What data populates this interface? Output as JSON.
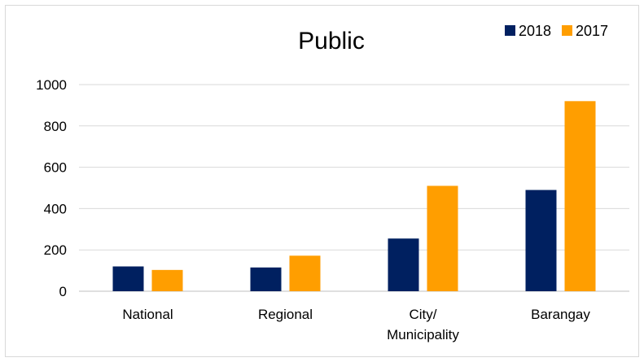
{
  "chart_data": {
    "type": "bar",
    "title": "Public",
    "categories": [
      [
        "National"
      ],
      [
        "Regional"
      ],
      [
        "City/",
        "Municipality"
      ],
      [
        "Barangay"
      ]
    ],
    "series": [
      {
        "name": "2018",
        "color": "#002060",
        "values": [
          120,
          115,
          255,
          490
        ]
      },
      {
        "name": "2017",
        "color": "#FF9E00",
        "values": [
          103,
          172,
          510,
          920
        ]
      }
    ],
    "xlabel": "",
    "ylabel": "",
    "ylim": [
      0,
      1000
    ],
    "yticks": [
      0,
      200,
      400,
      600,
      800,
      1000
    ],
    "grid": true,
    "legend": "top-right"
  }
}
